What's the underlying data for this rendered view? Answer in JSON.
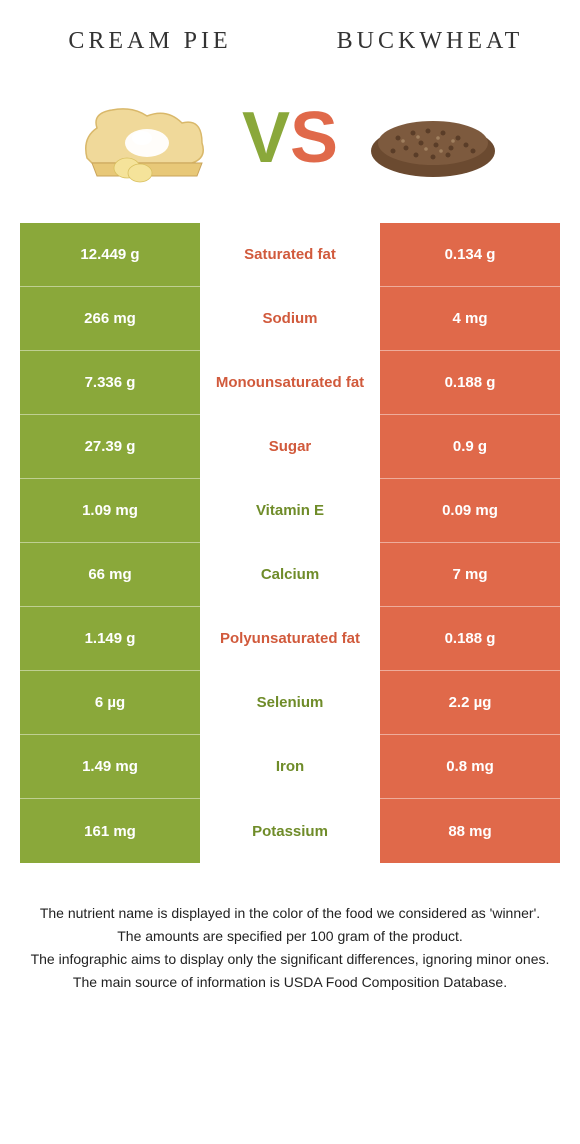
{
  "header": {
    "left": "CREAM PIE",
    "right": "BUCKWHEAT"
  },
  "vs": {
    "v": "V",
    "s": "S"
  },
  "colors": {
    "green": "#8aa83a",
    "orange": "#e0694a",
    "mid_green_text": "#6f8c29",
    "mid_orange_text": "#d15a3c"
  },
  "rows": [
    {
      "left": "12.449 g",
      "mid": "Saturated fat",
      "right": "0.134 g",
      "winner": "orange"
    },
    {
      "left": "266 mg",
      "mid": "Sodium",
      "right": "4 mg",
      "winner": "orange"
    },
    {
      "left": "7.336 g",
      "mid": "Monounsaturated fat",
      "right": "0.188 g",
      "winner": "orange"
    },
    {
      "left": "27.39 g",
      "mid": "Sugar",
      "right": "0.9 g",
      "winner": "orange"
    },
    {
      "left": "1.09 mg",
      "mid": "Vitamin E",
      "right": "0.09 mg",
      "winner": "green"
    },
    {
      "left": "66 mg",
      "mid": "Calcium",
      "right": "7 mg",
      "winner": "green"
    },
    {
      "left": "1.149 g",
      "mid": "Polyunsaturated fat",
      "right": "0.188 g",
      "winner": "orange"
    },
    {
      "left": "6 µg",
      "mid": "Selenium",
      "right": "2.2 µg",
      "winner": "green"
    },
    {
      "left": "1.49 mg",
      "mid": "Iron",
      "right": "0.8 mg",
      "winner": "green"
    },
    {
      "left": "161 mg",
      "mid": "Potassium",
      "right": "88 mg",
      "winner": "green"
    }
  ],
  "footer": {
    "line1": "The nutrient name is displayed in the color of the food we considered as 'winner'.",
    "line2": "The amounts are specified per 100 gram of the product.",
    "line3": "The infographic aims to display only the significant differences, ignoring minor ones.",
    "line4": "The main source of information is USDA Food Composition Database."
  }
}
